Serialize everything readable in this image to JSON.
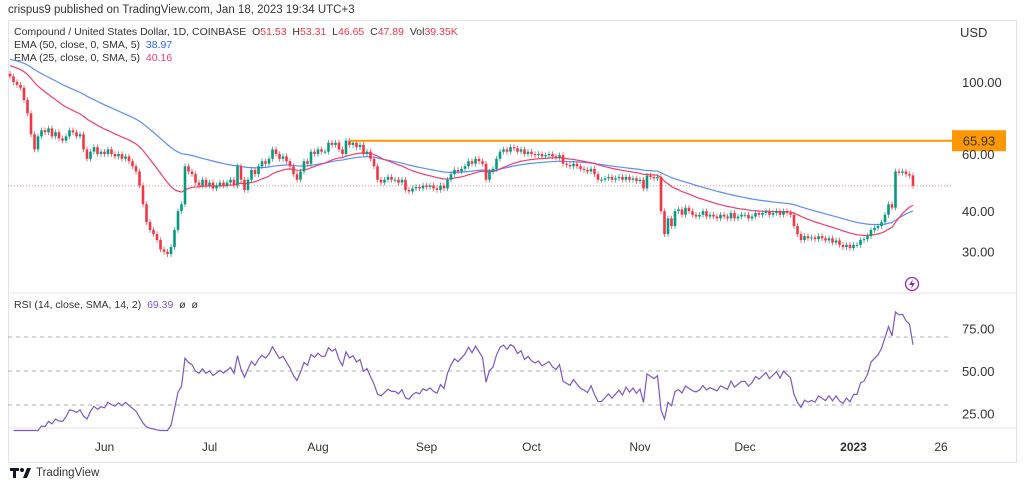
{
  "published": "crispus9 published on TradingView.com, Jan 18, 2023 19:34 UTC+3",
  "legend": {
    "symbol": "Compound / United States Dollar, 1D, COINBASE",
    "o_label": "O",
    "o": "51.53",
    "h_label": "H",
    "h": "53.31",
    "l_label": "L",
    "l": "46.65",
    "c_label": "C",
    "c": "47.89",
    "vol_label": "Vol",
    "vol": "39.35K",
    "ema50_label": "EMA (50, close, 0, SMA, 5)",
    "ema50": "38.97",
    "ema25_label": "EMA (25, close, 0, SMA, 5)",
    "ema25": "40.16",
    "rsi_label": "RSI (14, close, SMA, 14, 2)",
    "rsi": "69.39",
    "rsi_extra1": "ø",
    "rsi_extra2": "ø"
  },
  "footer": {
    "brand": "TradingView"
  },
  "colors": {
    "up": "#089981",
    "down": "#f23645",
    "ema50": "#5b8cff",
    "ema25": "#f23d6c",
    "rsi": "#7e57c2",
    "resistance": "#ff9800"
  },
  "icons": [
    "lightning-icon",
    "tradingview-logo"
  ],
  "chart_data": [
    {
      "type": "candlestick",
      "title": "Compound / United States Dollar, 1D, COINBASE",
      "currency_label": "USD",
      "scale": "log",
      "x_start": "2022-05-05",
      "x_end": "2023-01-18",
      "x_tick_labels": [
        "Jun",
        "Jul",
        "Aug",
        "Sep",
        "Oct",
        "Nov",
        "Dec",
        "2023",
        "26"
      ],
      "y_tick_labels": [
        "100.00",
        "60.00",
        "40.00",
        "30.00"
      ],
      "y_ticks": [
        100,
        60,
        40,
        30
      ],
      "resistance": {
        "value": 65.93,
        "label": "65.93",
        "from": "2022-08-10"
      },
      "last_price": 47.89,
      "last_open": 51.53,
      "closes": [
        104,
        100,
        98,
        96,
        88,
        80,
        69,
        62,
        68,
        71,
        70,
        72,
        68,
        70,
        67,
        66,
        68,
        71,
        70,
        68,
        69,
        62,
        58,
        61,
        63,
        60,
        61,
        60,
        62,
        60,
        59,
        60,
        58,
        59,
        57,
        55,
        53,
        48,
        42,
        37,
        35,
        34,
        32.6,
        30.5,
        30,
        29.5,
        31,
        35,
        40,
        42,
        55,
        53,
        52,
        49,
        48,
        50,
        48,
        49,
        47,
        48,
        49,
        48,
        49,
        50,
        48,
        55,
        50,
        46.5,
        50,
        53.6,
        52,
        55,
        57,
        56,
        58,
        62,
        60,
        58,
        59,
        57,
        55,
        52,
        50,
        53,
        57,
        56,
        61,
        60,
        62,
        61,
        61,
        65,
        64,
        65,
        62,
        60,
        66,
        64,
        65,
        63,
        64,
        60,
        61,
        58,
        55,
        50,
        49,
        50,
        51,
        50,
        50,
        49,
        50,
        46.5,
        46,
        47,
        47.5,
        47,
        48,
        47.5,
        48,
        47,
        46.5,
        48,
        47,
        50,
        52,
        53.6,
        53,
        54,
        55,
        57,
        56,
        58,
        57,
        56,
        50,
        53,
        54,
        58,
        61,
        62,
        61,
        63,
        62.5,
        61,
        62,
        60,
        61,
        60,
        59.5,
        60,
        59,
        59.5,
        60,
        59,
        58.5,
        59.5,
        56,
        55.5,
        55,
        56,
        55,
        54,
        53.6,
        53,
        54,
        52,
        50,
        50,
        50.5,
        51,
        50,
        50.5,
        51,
        50,
        51,
        50,
        50.5,
        49.5,
        50,
        47,
        51.5,
        51,
        50.5,
        51,
        40,
        34,
        38,
        36,
        40,
        40.5,
        39,
        41,
        40,
        39,
        38.5,
        39,
        40,
        38.5,
        39,
        38.5,
        38,
        39,
        38.5,
        38,
        39.5,
        38,
        38.5,
        39,
        39,
        38,
        38.5,
        39.5,
        39,
        39.5,
        40,
        39,
        39.5,
        40,
        39,
        40,
        39.5,
        39,
        36,
        34,
        32.6,
        33.5,
        33,
        33.2,
        32.8,
        33.5,
        33,
        32.5,
        33,
        32,
        32.5,
        31.5,
        31,
        31.5,
        30.8,
        31.5,
        31.5,
        32.6,
        32.8,
        33.5,
        35,
        35.5,
        36,
        37,
        39,
        42,
        41,
        53,
        52.5,
        53,
        52,
        51.5,
        47.89
      ],
      "ema50_start": 118,
      "ema25_start": 113,
      "series": [
        {
          "name": "EMA (50, close, 0, SMA, 5)",
          "last": 38.97
        },
        {
          "name": "EMA (25, close, 0, SMA, 5)",
          "last": 40.16
        }
      ]
    },
    {
      "type": "line",
      "title": "RSI (14, close, SMA, 14, 2)",
      "y_tick_labels": [
        "75.00",
        "50.00",
        "25.00"
      ],
      "y_ticks": [
        75,
        50,
        25
      ],
      "bands": [
        70,
        50,
        30
      ],
      "last": 69.39
    }
  ]
}
